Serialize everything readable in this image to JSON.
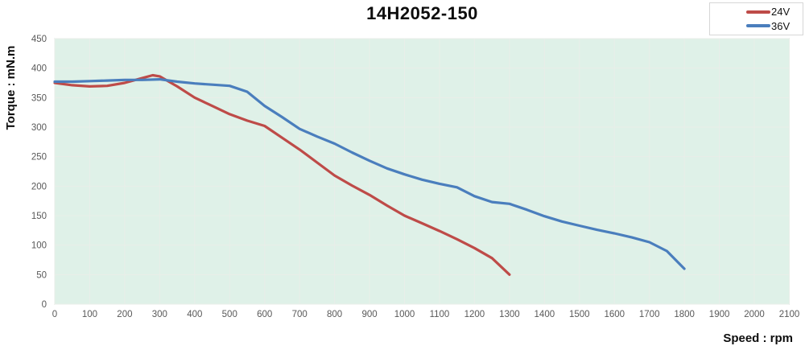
{
  "chart": {
    "title": "14H2052-150",
    "x_axis_title": "Speed : rpm",
    "y_axis_title": "Torque : mN.m"
  },
  "chart_data": {
    "type": "line",
    "title": "14H2052-150",
    "xlabel": "Speed : rpm",
    "ylabel": "Torque : mN.m",
    "xlim": [
      0,
      2100
    ],
    "ylim": [
      0,
      450
    ],
    "x_ticks": [
      0,
      100,
      200,
      300,
      400,
      500,
      600,
      700,
      800,
      900,
      1000,
      1100,
      1200,
      1300,
      1400,
      1500,
      1600,
      1700,
      1800,
      1900,
      2000,
      2100
    ],
    "y_ticks": [
      0,
      50,
      100,
      150,
      200,
      250,
      300,
      350,
      400,
      450
    ],
    "grid": true,
    "legend_position": "top-right",
    "colors": {
      "plot_bg": "#dff1e8",
      "grid_line": "#e9eee9",
      "plot_border": "#c3c9c4",
      "tick_label": "#595959",
      "series_24v": "#be4b48",
      "series_36v": "#4a7ebd"
    },
    "series": [
      {
        "name": "24V",
        "color": "#be4b48",
        "points": [
          [
            0,
            375
          ],
          [
            50,
            371
          ],
          [
            100,
            369
          ],
          [
            150,
            370
          ],
          [
            200,
            375
          ],
          [
            250,
            383
          ],
          [
            280,
            388
          ],
          [
            300,
            386
          ],
          [
            350,
            369
          ],
          [
            400,
            350
          ],
          [
            450,
            336
          ],
          [
            500,
            322
          ],
          [
            550,
            311
          ],
          [
            600,
            302
          ],
          [
            650,
            282
          ],
          [
            700,
            262
          ],
          [
            750,
            240
          ],
          [
            800,
            218
          ],
          [
            850,
            201
          ],
          [
            900,
            185
          ],
          [
            950,
            167
          ],
          [
            1000,
            150
          ],
          [
            1050,
            137
          ],
          [
            1100,
            124
          ],
          [
            1150,
            110
          ],
          [
            1200,
            95
          ],
          [
            1250,
            78
          ],
          [
            1300,
            50
          ]
        ]
      },
      {
        "name": "36V",
        "color": "#4a7ebd",
        "points": [
          [
            0,
            377
          ],
          [
            50,
            377
          ],
          [
            100,
            378
          ],
          [
            150,
            379
          ],
          [
            200,
            380
          ],
          [
            250,
            380
          ],
          [
            300,
            381
          ],
          [
            350,
            377
          ],
          [
            400,
            374
          ],
          [
            450,
            372
          ],
          [
            500,
            370
          ],
          [
            550,
            360
          ],
          [
            600,
            336
          ],
          [
            650,
            317
          ],
          [
            700,
            297
          ],
          [
            750,
            284
          ],
          [
            800,
            272
          ],
          [
            850,
            257
          ],
          [
            900,
            243
          ],
          [
            950,
            230
          ],
          [
            1000,
            220
          ],
          [
            1050,
            211
          ],
          [
            1100,
            204
          ],
          [
            1150,
            198
          ],
          [
            1200,
            183
          ],
          [
            1250,
            173
          ],
          [
            1300,
            170
          ],
          [
            1350,
            160
          ],
          [
            1400,
            149
          ],
          [
            1450,
            140
          ],
          [
            1500,
            133
          ],
          [
            1550,
            126
          ],
          [
            1600,
            120
          ],
          [
            1650,
            113
          ],
          [
            1700,
            105
          ],
          [
            1750,
            90
          ],
          [
            1800,
            60
          ]
        ]
      }
    ]
  }
}
